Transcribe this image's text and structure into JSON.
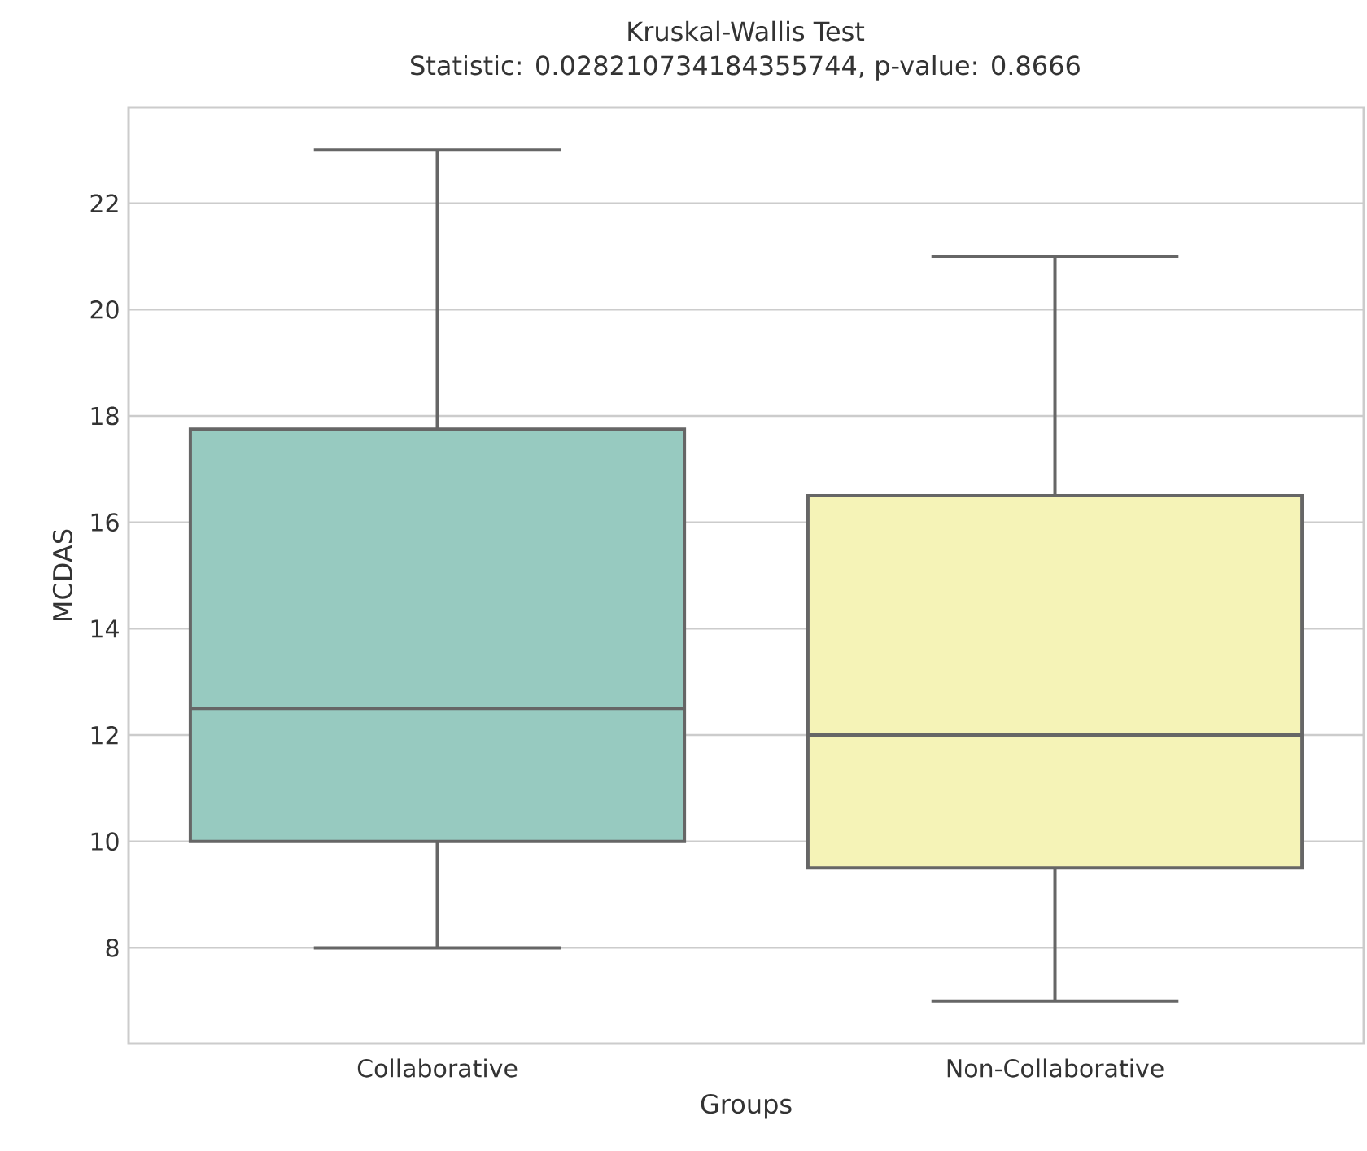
{
  "chart_data": {
    "type": "box",
    "title": "Kruskal-Wallis Test",
    "subtitle": "Statistic: 0.028210734184355744, p-value: 0.8666",
    "xlabel": "Groups",
    "ylabel": "MCDAS",
    "categories": [
      "Collaborative",
      "Non-Collaborative"
    ],
    "boxes": [
      {
        "low": 8,
        "q1": 10,
        "median": 12.5,
        "q3": 17.75,
        "high": 23
      },
      {
        "low": 7,
        "q1": 9.5,
        "median": 12,
        "q3": 16.5,
        "high": 21
      }
    ],
    "colors": [
      "#97cac0",
      "#f5f3b7"
    ],
    "ylim": [
      6.2,
      23.8
    ],
    "yticks": [
      8,
      10,
      12,
      14,
      16,
      18,
      20,
      22
    ],
    "grid": "y"
  }
}
